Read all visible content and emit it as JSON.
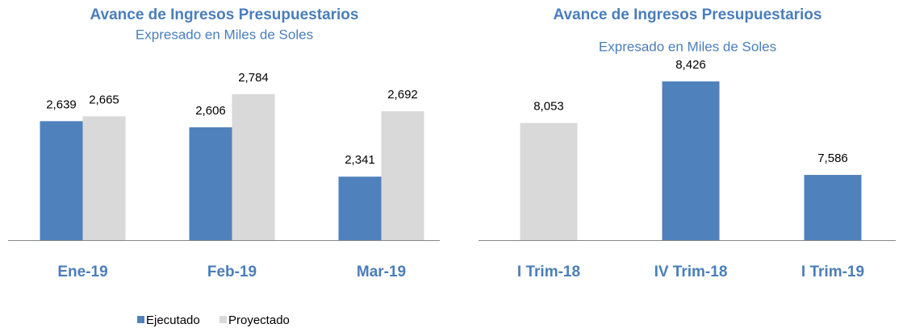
{
  "chart_data": [
    {
      "type": "bar",
      "title": "Avance de Ingresos Presupuestarios",
      "subtitle": "Expresado en Miles de Soles",
      "categories": [
        "Ene-19",
        "Feb-19",
        "Mar-19"
      ],
      "series": [
        {
          "name": "Ejecutado",
          "color": "#4f81bd",
          "values": [
            2639,
            2606,
            2341
          ],
          "value_labels": [
            "2,639",
            "2,606",
            "2,341"
          ]
        },
        {
          "name": "Proyectado",
          "color": "#d9d9d9",
          "values": [
            2665,
            2784,
            2692
          ],
          "value_labels": [
            "2,665",
            "2,784",
            "2,692"
          ]
        }
      ],
      "ylim": [
        2000,
        2900
      ],
      "legend": "bottom"
    },
    {
      "type": "bar",
      "title": "Avance de Ingresos Presupuestarios",
      "subtitle": "Expresado en Miles de Soles",
      "categories": [
        "I Trim-18",
        "IV Trim-18",
        "I Trim-19"
      ],
      "values": [
        8053,
        8426,
        7586
      ],
      "value_labels": [
        "8,053",
        "8,426",
        "7,586"
      ],
      "colors": [
        "#d9d9d9",
        "#4f81bd",
        "#4f81bd"
      ],
      "ylim": [
        7000,
        8600
      ]
    }
  ]
}
